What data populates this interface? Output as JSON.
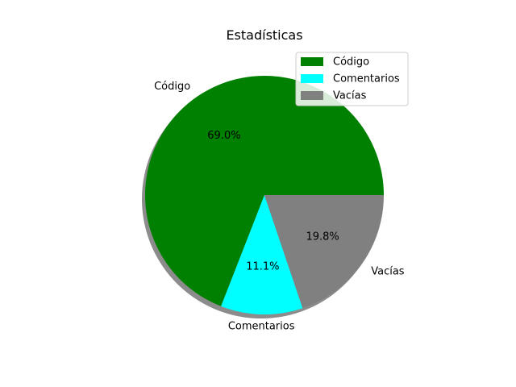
{
  "chart_data": {
    "type": "pie",
    "title": "Estadísticas",
    "labels": [
      "Código",
      "Comentarios",
      "Vacías"
    ],
    "values": [
      69.0,
      11.1,
      19.8
    ],
    "percent_labels": [
      "69.0%",
      "11.1%",
      "19.8%"
    ],
    "colors": [
      "#008000",
      "#00ffff",
      "#808080"
    ],
    "start_angle_deg": 0,
    "direction": "counterclockwise",
    "shadow": true,
    "legend": {
      "placement": "upper-right",
      "entries": [
        "Código",
        "Comentarios",
        "Vacías"
      ]
    }
  }
}
